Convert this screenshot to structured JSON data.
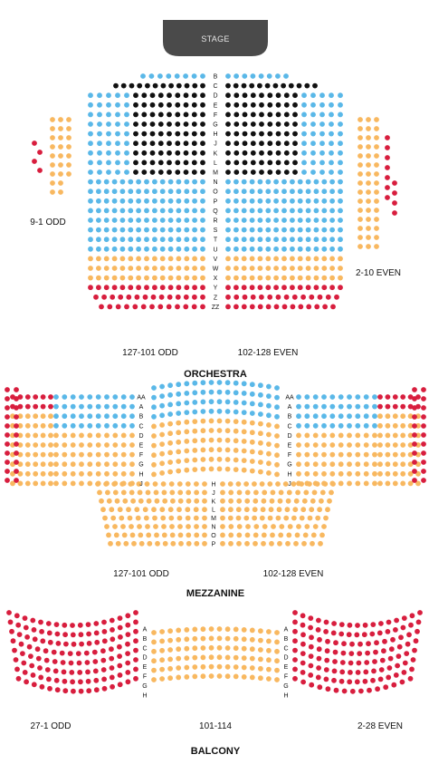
{
  "stage": {
    "label": "STAGE",
    "color": "#4a4a4a"
  },
  "palette": {
    "black": "#111111",
    "blue": "#5ab8e8",
    "orange": "#f8b860",
    "red": "#d81e3e"
  },
  "sections": {
    "orchestra": {
      "title": "ORCHESTRA",
      "rows": [
        "B",
        "C",
        "D",
        "E",
        "F",
        "G",
        "H",
        "J",
        "K",
        "L",
        "M",
        "N",
        "O",
        "P",
        "Q",
        "R",
        "S",
        "T",
        "U",
        "V",
        "W",
        "X",
        "Y",
        "Z",
        "ZZ"
      ],
      "labels": {
        "left_box": "9-1 ODD",
        "right_box": "2-10 EVEN",
        "left_main": "127-101 ODD",
        "right_main": "102-128 EVEN"
      }
    },
    "mezzanine": {
      "title": "MEZZANINE",
      "rows_sides": [
        "AA",
        "A",
        "B",
        "C",
        "D",
        "E",
        "F",
        "G",
        "H",
        "J"
      ],
      "rows_center": [
        "H",
        "J",
        "K",
        "L",
        "M",
        "N",
        "O",
        "P"
      ],
      "labels": {
        "left": "127-101 ODD",
        "right": "102-128 EVEN"
      }
    },
    "balcony": {
      "title": "BALCONY",
      "rows": [
        "A",
        "B",
        "C",
        "D",
        "E",
        "F",
        "G",
        "H"
      ],
      "labels": {
        "left": "27-1 ODD",
        "center": "101-114",
        "right": "2-28 EVEN"
      }
    }
  }
}
